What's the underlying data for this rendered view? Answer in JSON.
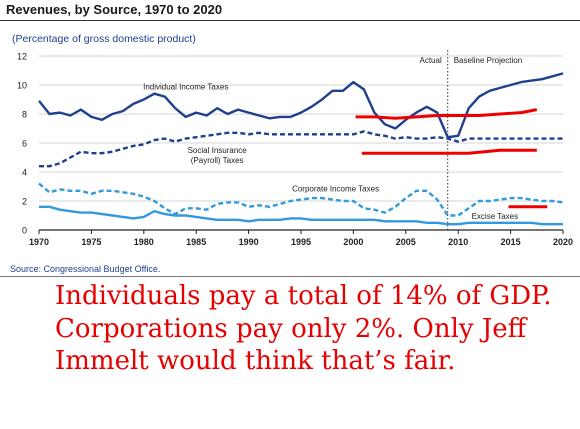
{
  "chart_data": {
    "type": "line",
    "title": "Revenues, by Source, 1970 to 2020",
    "subtitle": "(Percentage of gross domestic product)",
    "source": "Source: Congressional Budget Office.",
    "xlim": [
      1970,
      2020
    ],
    "ylim": [
      0,
      12
    ],
    "x_ticks": [
      1970,
      1975,
      1980,
      1985,
      1990,
      1995,
      2000,
      2005,
      2010,
      2015,
      2020
    ],
    "y_ticks": [
      0,
      2,
      4,
      6,
      8,
      10,
      12
    ],
    "region_labels": {
      "actual": "Actual",
      "projection": "Baseline Projection"
    },
    "divider_x": 2009,
    "series": [
      {
        "name": "Individual Income Taxes",
        "color": "#1f3f8f",
        "style": "solid",
        "points": [
          [
            1970,
            8.9
          ],
          [
            1971,
            8.0
          ],
          [
            1972,
            8.1
          ],
          [
            1973,
            7.9
          ],
          [
            1974,
            8.3
          ],
          [
            1975,
            7.8
          ],
          [
            1976,
            7.6
          ],
          [
            1977,
            8.0
          ],
          [
            1978,
            8.2
          ],
          [
            1979,
            8.7
          ],
          [
            1980,
            9.0
          ],
          [
            1981,
            9.4
          ],
          [
            1982,
            9.2
          ],
          [
            1983,
            8.4
          ],
          [
            1984,
            7.8
          ],
          [
            1985,
            8.1
          ],
          [
            1986,
            7.9
          ],
          [
            1987,
            8.4
          ],
          [
            1988,
            8.0
          ],
          [
            1989,
            8.3
          ],
          [
            1990,
            8.1
          ],
          [
            1991,
            7.9
          ],
          [
            1992,
            7.7
          ],
          [
            1993,
            7.8
          ],
          [
            1994,
            7.8
          ],
          [
            1995,
            8.1
          ],
          [
            1996,
            8.5
          ],
          [
            1997,
            9.0
          ],
          [
            1998,
            9.6
          ],
          [
            1999,
            9.6
          ],
          [
            2000,
            10.2
          ],
          [
            2001,
            9.7
          ],
          [
            2002,
            8.1
          ],
          [
            2003,
            7.3
          ],
          [
            2004,
            7.0
          ],
          [
            2005,
            7.6
          ],
          [
            2006,
            8.1
          ],
          [
            2007,
            8.5
          ],
          [
            2008,
            8.1
          ],
          [
            2009,
            6.4
          ],
          [
            2010,
            6.5
          ],
          [
            2011,
            8.4
          ],
          [
            2012,
            9.2
          ],
          [
            2013,
            9.6
          ],
          [
            2014,
            9.8
          ],
          [
            2015,
            10.0
          ],
          [
            2016,
            10.2
          ],
          [
            2017,
            10.3
          ],
          [
            2018,
            10.4
          ],
          [
            2019,
            10.6
          ],
          [
            2020,
            10.8
          ]
        ]
      },
      {
        "name": "Social Insurance (Payroll) Taxes",
        "color": "#1f3f8f",
        "style": "dash",
        "points": [
          [
            1970,
            4.4
          ],
          [
            1971,
            4.4
          ],
          [
            1972,
            4.6
          ],
          [
            1973,
            5.0
          ],
          [
            1974,
            5.4
          ],
          [
            1975,
            5.3
          ],
          [
            1976,
            5.3
          ],
          [
            1977,
            5.4
          ],
          [
            1978,
            5.6
          ],
          [
            1979,
            5.8
          ],
          [
            1980,
            5.9
          ],
          [
            1981,
            6.2
          ],
          [
            1982,
            6.3
          ],
          [
            1983,
            6.1
          ],
          [
            1984,
            6.3
          ],
          [
            1985,
            6.4
          ],
          [
            1986,
            6.5
          ],
          [
            1987,
            6.6
          ],
          [
            1988,
            6.7
          ],
          [
            1989,
            6.7
          ],
          [
            1990,
            6.6
          ],
          [
            1991,
            6.7
          ],
          [
            1992,
            6.6
          ],
          [
            1993,
            6.6
          ],
          [
            1994,
            6.6
          ],
          [
            1995,
            6.6
          ],
          [
            1996,
            6.6
          ],
          [
            1997,
            6.6
          ],
          [
            1998,
            6.6
          ],
          [
            1999,
            6.6
          ],
          [
            2000,
            6.6
          ],
          [
            2001,
            6.8
          ],
          [
            2002,
            6.6
          ],
          [
            2003,
            6.5
          ],
          [
            2004,
            6.3
          ],
          [
            2005,
            6.4
          ],
          [
            2006,
            6.3
          ],
          [
            2007,
            6.3
          ],
          [
            2008,
            6.4
          ],
          [
            2009,
            6.3
          ],
          [
            2010,
            6.1
          ],
          [
            2011,
            6.3
          ],
          [
            2012,
            6.3
          ],
          [
            2013,
            6.3
          ],
          [
            2014,
            6.3
          ],
          [
            2015,
            6.3
          ],
          [
            2016,
            6.3
          ],
          [
            2017,
            6.3
          ],
          [
            2018,
            6.3
          ],
          [
            2019,
            6.3
          ],
          [
            2020,
            6.3
          ]
        ]
      },
      {
        "name": "Corporate Income Taxes",
        "color": "#3399dd",
        "style": "dash",
        "points": [
          [
            1970,
            3.2
          ],
          [
            1971,
            2.6
          ],
          [
            1972,
            2.8
          ],
          [
            1973,
            2.7
          ],
          [
            1974,
            2.7
          ],
          [
            1975,
            2.5
          ],
          [
            1976,
            2.7
          ],
          [
            1977,
            2.7
          ],
          [
            1978,
            2.6
          ],
          [
            1979,
            2.5
          ],
          [
            1980,
            2.3
          ],
          [
            1981,
            2.0
          ],
          [
            1982,
            1.5
          ],
          [
            1983,
            1.1
          ],
          [
            1984,
            1.5
          ],
          [
            1985,
            1.5
          ],
          [
            1986,
            1.4
          ],
          [
            1987,
            1.8
          ],
          [
            1988,
            1.9
          ],
          [
            1989,
            1.9
          ],
          [
            1990,
            1.6
          ],
          [
            1991,
            1.7
          ],
          [
            1992,
            1.6
          ],
          [
            1993,
            1.8
          ],
          [
            1994,
            2.0
          ],
          [
            1995,
            2.1
          ],
          [
            1996,
            2.2
          ],
          [
            1997,
            2.2
          ],
          [
            1998,
            2.1
          ],
          [
            1999,
            2.0
          ],
          [
            2000,
            2.0
          ],
          [
            2001,
            1.5
          ],
          [
            2002,
            1.4
          ],
          [
            2003,
            1.2
          ],
          [
            2004,
            1.6
          ],
          [
            2005,
            2.2
          ],
          [
            2006,
            2.7
          ],
          [
            2007,
            2.7
          ],
          [
            2008,
            2.1
          ],
          [
            2009,
            1.0
          ],
          [
            2010,
            1.0
          ],
          [
            2011,
            1.5
          ],
          [
            2012,
            2.0
          ],
          [
            2013,
            2.0
          ],
          [
            2014,
            2.1
          ],
          [
            2015,
            2.2
          ],
          [
            2016,
            2.2
          ],
          [
            2017,
            2.1
          ],
          [
            2018,
            2.0
          ],
          [
            2019,
            2.0
          ],
          [
            2020,
            1.9
          ]
        ]
      },
      {
        "name": "Excise Taxes",
        "color": "#3399dd",
        "style": "solid",
        "points": [
          [
            1970,
            1.6
          ],
          [
            1971,
            1.6
          ],
          [
            1972,
            1.4
          ],
          [
            1973,
            1.3
          ],
          [
            1974,
            1.2
          ],
          [
            1975,
            1.2
          ],
          [
            1976,
            1.1
          ],
          [
            1977,
            1.0
          ],
          [
            1978,
            0.9
          ],
          [
            1979,
            0.8
          ],
          [
            1980,
            0.9
          ],
          [
            1981,
            1.3
          ],
          [
            1982,
            1.1
          ],
          [
            1983,
            1.0
          ],
          [
            1984,
            1.0
          ],
          [
            1985,
            0.9
          ],
          [
            1986,
            0.8
          ],
          [
            1987,
            0.7
          ],
          [
            1988,
            0.7
          ],
          [
            1989,
            0.7
          ],
          [
            1990,
            0.6
          ],
          [
            1991,
            0.7
          ],
          [
            1992,
            0.7
          ],
          [
            1993,
            0.7
          ],
          [
            1994,
            0.8
          ],
          [
            1995,
            0.8
          ],
          [
            1996,
            0.7
          ],
          [
            1997,
            0.7
          ],
          [
            1998,
            0.7
          ],
          [
            1999,
            0.7
          ],
          [
            2000,
            0.7
          ],
          [
            2001,
            0.7
          ],
          [
            2002,
            0.7
          ],
          [
            2003,
            0.6
          ],
          [
            2004,
            0.6
          ],
          [
            2005,
            0.6
          ],
          [
            2006,
            0.6
          ],
          [
            2007,
            0.5
          ],
          [
            2008,
            0.5
          ],
          [
            2009,
            0.4
          ],
          [
            2010,
            0.4
          ],
          [
            2011,
            0.5
          ],
          [
            2012,
            0.5
          ],
          [
            2013,
            0.5
          ],
          [
            2014,
            0.5
          ],
          [
            2015,
            0.5
          ],
          [
            2016,
            0.5
          ],
          [
            2017,
            0.5
          ],
          [
            2018,
            0.4
          ],
          [
            2019,
            0.4
          ],
          [
            2020,
            0.4
          ]
        ]
      }
    ],
    "overlay_lines": [
      {
        "color": "#ee0000",
        "points": [
          [
            2000.2,
            7.8
          ],
          [
            2002,
            7.8
          ],
          [
            2004,
            7.7
          ],
          [
            2006,
            7.8
          ],
          [
            2008,
            7.9
          ],
          [
            2010,
            7.9
          ],
          [
            2012,
            7.9
          ],
          [
            2014,
            8.0
          ],
          [
            2016,
            8.1
          ],
          [
            2017.5,
            8.3
          ]
        ]
      },
      {
        "color": "#ee0000",
        "points": [
          [
            2000.8,
            5.3
          ],
          [
            2004,
            5.3
          ],
          [
            2008,
            5.3
          ],
          [
            2011,
            5.3
          ],
          [
            2014,
            5.5
          ],
          [
            2017.5,
            5.5
          ]
        ]
      },
      {
        "color": "#ee0000",
        "points": [
          [
            2014.8,
            1.6
          ],
          [
            2018.5,
            1.6
          ]
        ]
      }
    ]
  },
  "annotation_text": "Individuals pay a total of 14% of GDP. Corporations pay only 2%. Only Jeff Immelt would think that’s fair."
}
